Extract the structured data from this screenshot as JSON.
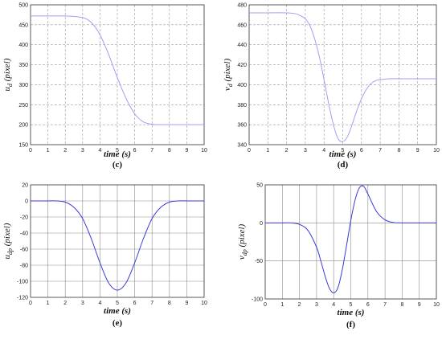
{
  "chart_data": [
    {
      "id": "c",
      "type": "line",
      "panel_label": "(c)",
      "xlabel": "time (s)",
      "ylabel_main": "u",
      "ylabel_sub": "d",
      "ylabel_rest": " (pixel)",
      "xlim": [
        0,
        10
      ],
      "ylim": [
        150,
        500
      ],
      "xticks": [
        "0",
        "1",
        "2",
        "3",
        "4",
        "5",
        "6",
        "7",
        "8",
        "9",
        "10"
      ],
      "yticks": [
        "150",
        "200",
        "250",
        "300",
        "350",
        "400",
        "450",
        "500"
      ],
      "grid": "dashed",
      "line_color": "#9f9ff5",
      "series": [
        {
          "x": [
            0,
            1,
            2,
            2.5,
            3,
            3.25,
            3.5,
            3.75,
            4,
            4.25,
            4.5,
            4.75,
            5,
            5.25,
            5.5,
            5.75,
            6,
            6.25,
            6.5,
            6.75,
            7,
            7.25,
            7.5,
            8,
            9,
            10
          ],
          "values": [
            472,
            472,
            472,
            471,
            468,
            464,
            456,
            443,
            425,
            402,
            376,
            347,
            318,
            291,
            266,
            245,
            227,
            215,
            207,
            203,
            201,
            200,
            200,
            200,
            200,
            200
          ]
        }
      ]
    },
    {
      "id": "d",
      "type": "line",
      "panel_label": "(d)",
      "xlabel": "time (s)",
      "ylabel_main": "v",
      "ylabel_sub": "d",
      "ylabel_rest": " (pixel)",
      "xlim": [
        0,
        10
      ],
      "ylim": [
        340,
        480
      ],
      "xticks": [
        "0",
        "1",
        "2",
        "3",
        "4",
        "5",
        "6",
        "7",
        "8",
        "9",
        "10"
      ],
      "yticks": [
        "340",
        "360",
        "380",
        "400",
        "420",
        "440",
        "460",
        "480"
      ],
      "grid": "dashed",
      "line_color": "#9f9ff5",
      "series": [
        {
          "x": [
            0,
            1,
            2,
            2.5,
            2.75,
            3,
            3.25,
            3.5,
            3.75,
            4,
            4.25,
            4.5,
            4.75,
            5,
            5.25,
            5.5,
            5.75,
            6,
            6.25,
            6.5,
            6.75,
            7,
            7.5,
            8,
            9,
            10
          ],
          "values": [
            472,
            472,
            472,
            471,
            469,
            466,
            459,
            446,
            428,
            405,
            381,
            360,
            346,
            343,
            348,
            360,
            374,
            386,
            395,
            401,
            404,
            405,
            406,
            406,
            406,
            406
          ]
        }
      ]
    },
    {
      "id": "e",
      "type": "line",
      "panel_label": "(e)",
      "xlabel": "time (s)",
      "ylabel_main": "u",
      "ylabel_sub": "dp",
      "ylabel_rest": " (pixel)",
      "xlim": [
        0,
        10
      ],
      "ylim": [
        -120,
        20
      ],
      "xticks": [
        "0",
        "1",
        "2",
        "3",
        "4",
        "5",
        "6",
        "7",
        "8",
        "9",
        "10"
      ],
      "yticks": [
        "-120",
        "-100",
        "-80",
        "-60",
        "-40",
        "-20",
        "0",
        "20"
      ],
      "grid": "solid",
      "line_color": "#3a3ad8",
      "series": [
        {
          "x": [
            0,
            1,
            1.5,
            2,
            2.5,
            3,
            3.5,
            4,
            4.5,
            5,
            5.5,
            6,
            6.5,
            7,
            7.5,
            8,
            8.5,
            9,
            10
          ],
          "values": [
            0,
            0,
            0,
            -1.5,
            -8,
            -22,
            -47,
            -77,
            -102,
            -111,
            -102,
            -77,
            -47,
            -22,
            -8,
            -1.5,
            0,
            0,
            0
          ]
        }
      ]
    },
    {
      "id": "f",
      "type": "line",
      "panel_label": "(f)",
      "xlabel": "time (s)",
      "ylabel_main": "v",
      "ylabel_sub": "dp",
      "ylabel_rest": " (pixel)",
      "xlim": [
        0,
        10
      ],
      "ylim": [
        -100,
        50
      ],
      "xticks": [
        "0",
        "1",
        "2",
        "3",
        "4",
        "5",
        "6",
        "7",
        "8",
        "9",
        "10"
      ],
      "yticks": [
        "-100",
        "-50",
        "0",
        "50"
      ],
      "grid": "solid",
      "line_color": "#3a3ad8",
      "series": [
        {
          "x": [
            0,
            1,
            1.5,
            2,
            2.5,
            3,
            3.25,
            3.5,
            3.75,
            4,
            4.25,
            4.5,
            4.75,
            5,
            5.25,
            5.5,
            5.75,
            6,
            6.5,
            7,
            7.5,
            8,
            9,
            10
          ],
          "values": [
            0,
            0,
            0,
            -2,
            -10,
            -32,
            -50,
            -70,
            -86,
            -92,
            -85,
            -62,
            -30,
            3,
            30,
            46,
            48,
            38,
            15,
            4,
            0.5,
            0,
            0,
            0
          ]
        }
      ]
    }
  ]
}
